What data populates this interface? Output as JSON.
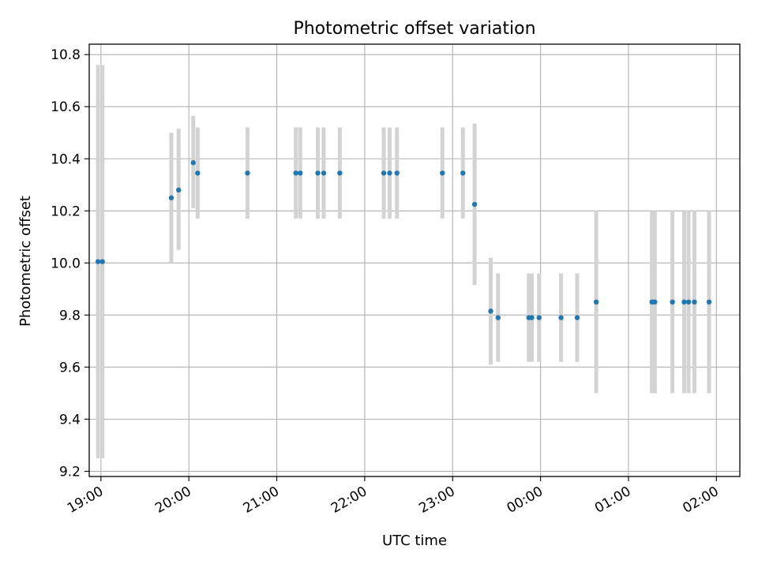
{
  "chart_data": {
    "type": "scatter",
    "title": "Photometric offset variation",
    "xlabel": "UTC time",
    "ylabel": "Photometric offset",
    "xlim": [
      "18:52",
      "02:16"
    ],
    "ylim": [
      9.18,
      10.84
    ],
    "x_ticks": [
      "19:00",
      "20:00",
      "21:00",
      "22:00",
      "23:00",
      "00:00",
      "01:00",
      "02:00"
    ],
    "y_ticks": [
      "9.2",
      "9.4",
      "9.6",
      "9.8",
      "10.0",
      "10.2",
      "10.4",
      "10.6",
      "10.8"
    ],
    "grid": true,
    "colors": {
      "marker": "#1f77b4",
      "errorbar": "#d3d3d3",
      "grid": "#b0b0b0"
    },
    "points": [
      {
        "x": "18:58",
        "y": 10.005,
        "err_low": 9.25,
        "err_high": 10.76
      },
      {
        "x": "19:01",
        "y": 10.005,
        "err_low": 9.25,
        "err_high": 10.76
      },
      {
        "x": "19:48",
        "y": 10.25,
        "err_low": 10.0,
        "err_high": 10.5
      },
      {
        "x": "19:53",
        "y": 10.28,
        "err_low": 10.05,
        "err_high": 10.515
      },
      {
        "x": "20:03",
        "y": 10.385,
        "err_low": 10.21,
        "err_high": 10.565
      },
      {
        "x": "20:06",
        "y": 10.345,
        "err_low": 10.17,
        "err_high": 10.52
      },
      {
        "x": "20:40",
        "y": 10.345,
        "err_low": 10.17,
        "err_high": 10.52
      },
      {
        "x": "21:13",
        "y": 10.345,
        "err_low": 10.17,
        "err_high": 10.52
      },
      {
        "x": "21:16",
        "y": 10.345,
        "err_low": 10.17,
        "err_high": 10.52
      },
      {
        "x": "21:28",
        "y": 10.345,
        "err_low": 10.17,
        "err_high": 10.52
      },
      {
        "x": "21:32",
        "y": 10.345,
        "err_low": 10.17,
        "err_high": 10.52
      },
      {
        "x": "21:43",
        "y": 10.345,
        "err_low": 10.17,
        "err_high": 10.52
      },
      {
        "x": "22:13",
        "y": 10.345,
        "err_low": 10.17,
        "err_high": 10.52
      },
      {
        "x": "22:17",
        "y": 10.345,
        "err_low": 10.17,
        "err_high": 10.52
      },
      {
        "x": "22:22",
        "y": 10.345,
        "err_low": 10.17,
        "err_high": 10.52
      },
      {
        "x": "22:53",
        "y": 10.345,
        "err_low": 10.17,
        "err_high": 10.52
      },
      {
        "x": "23:07",
        "y": 10.345,
        "err_low": 10.17,
        "err_high": 10.52
      },
      {
        "x": "23:15",
        "y": 10.225,
        "err_low": 9.915,
        "err_high": 10.535
      },
      {
        "x": "23:26",
        "y": 9.815,
        "err_low": 9.61,
        "err_high": 10.02
      },
      {
        "x": "23:31",
        "y": 9.79,
        "err_low": 9.62,
        "err_high": 9.96
      },
      {
        "x": "23:52",
        "y": 9.79,
        "err_low": 9.62,
        "err_high": 9.96
      },
      {
        "x": "23:54",
        "y": 9.79,
        "err_low": 9.62,
        "err_high": 9.96
      },
      {
        "x": "23:59",
        "y": 9.79,
        "err_low": 9.62,
        "err_high": 9.96
      },
      {
        "x": "00:14",
        "y": 9.79,
        "err_low": 9.62,
        "err_high": 9.96
      },
      {
        "x": "00:25",
        "y": 9.79,
        "err_low": 9.62,
        "err_high": 9.96
      },
      {
        "x": "00:38",
        "y": 9.85,
        "err_low": 9.5,
        "err_high": 10.2
      },
      {
        "x": "01:16",
        "y": 9.85,
        "err_low": 9.5,
        "err_high": 10.2
      },
      {
        "x": "01:18",
        "y": 9.85,
        "err_low": 9.5,
        "err_high": 10.2
      },
      {
        "x": "01:30",
        "y": 9.85,
        "err_low": 9.5,
        "err_high": 10.2
      },
      {
        "x": "01:38",
        "y": 9.85,
        "err_low": 9.5,
        "err_high": 10.2
      },
      {
        "x": "01:41",
        "y": 9.85,
        "err_low": 9.5,
        "err_high": 10.2
      },
      {
        "x": "01:45",
        "y": 9.85,
        "err_low": 9.5,
        "err_high": 10.2
      },
      {
        "x": "01:55",
        "y": 9.85,
        "err_low": 9.5,
        "err_high": 10.2
      }
    ]
  }
}
